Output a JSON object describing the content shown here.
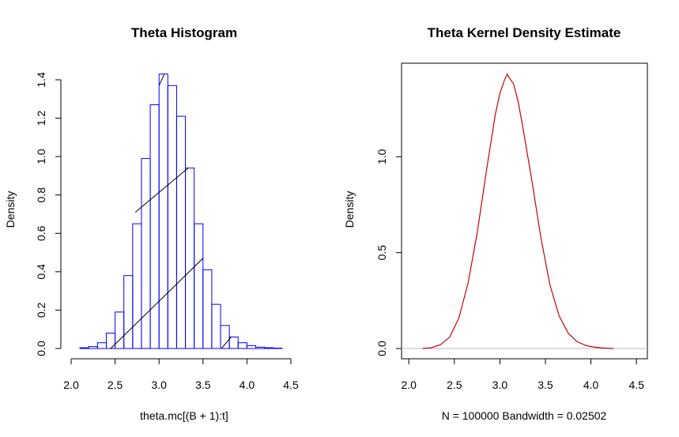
{
  "chart_data": [
    {
      "type": "bar",
      "subtype": "histogram",
      "title": "Theta Histogram",
      "xlabel": "theta.mc[(B + 1):t]",
      "ylabel": "Density",
      "bar_color": "#0000ff",
      "bin_width": 0.1,
      "bins": [
        2.1,
        2.2,
        2.3,
        2.4,
        2.5,
        2.6,
        2.7,
        2.8,
        2.9,
        3.0,
        3.1,
        3.2,
        3.3,
        3.4,
        3.5,
        3.6,
        3.7,
        3.8,
        3.9,
        4.0,
        4.1,
        4.2,
        4.3
      ],
      "values": [
        0.004,
        0.01,
        0.03,
        0.08,
        0.19,
        0.38,
        0.65,
        0.99,
        1.27,
        1.43,
        1.37,
        1.21,
        0.94,
        0.65,
        0.41,
        0.23,
        0.12,
        0.06,
        0.03,
        0.015,
        0.007,
        0.004,
        0.002
      ],
      "x_ticks": [
        "2.0",
        "2.5",
        "3.0",
        "3.5",
        "4.0",
        "4.5"
      ],
      "y_ticks": [
        "0.0",
        "0.2",
        "0.4",
        "0.6",
        "0.8",
        "1.0",
        "1.2",
        "1.4"
      ],
      "xlim": [
        2.0,
        4.5
      ],
      "ylim": [
        0,
        1.4
      ],
      "annotation_lines": [
        {
          "x": [
            2.45,
            3.5
          ],
          "y": [
            0.0,
            0.47
          ]
        },
        {
          "x": [
            2.73,
            3.33
          ],
          "y": [
            0.71,
            0.94
          ]
        },
        {
          "x": [
            3.0,
            3.06
          ],
          "y": [
            1.37,
            1.43
          ]
        },
        {
          "x": [
            3.71,
            3.82
          ],
          "y": [
            0.0,
            0.06
          ]
        }
      ]
    },
    {
      "type": "line",
      "title": "Theta Kernel Density Estimate",
      "xlabel": "N = 100000   Bandwidth = 0.02502",
      "ylabel": "Density",
      "line_color": "#cc0000",
      "zero_line_color": "#bbbbbb",
      "x": [
        2.15,
        2.25,
        2.35,
        2.45,
        2.55,
        2.65,
        2.75,
        2.85,
        2.95,
        3.0,
        3.05,
        3.08,
        3.12,
        3.15,
        3.2,
        3.25,
        3.35,
        3.45,
        3.55,
        3.65,
        3.75,
        3.85,
        3.95,
        4.05,
        4.15,
        4.25
      ],
      "y": [
        0.0,
        0.004,
        0.02,
        0.06,
        0.16,
        0.34,
        0.6,
        0.92,
        1.22,
        1.33,
        1.4,
        1.43,
        1.4,
        1.38,
        1.29,
        1.16,
        0.88,
        0.58,
        0.33,
        0.17,
        0.08,
        0.035,
        0.015,
        0.006,
        0.002,
        0.0
      ],
      "x_ticks": [
        "2.0",
        "2.5",
        "3.0",
        "3.5",
        "4.0",
        "4.5"
      ],
      "y_ticks": [
        "0.0",
        "0.5",
        "1.0"
      ],
      "xlim": [
        1.92,
        4.62
      ],
      "ylim": [
        0,
        1.43
      ]
    }
  ]
}
